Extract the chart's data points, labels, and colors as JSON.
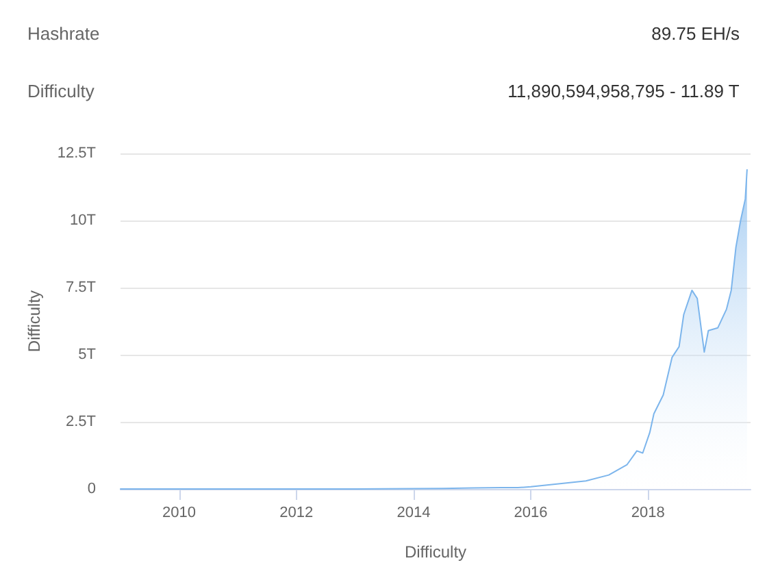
{
  "chart_data": {
    "type": "area",
    "annotations": [
      "Hashrate",
      "89.75 EH/s",
      "Difficulty",
      "11,890,594,958,795 - 11.89 T"
    ],
    "xlabel": "Difficulty",
    "ylabel": "Difficulty",
    "x": [
      2009.0,
      2010,
      2011,
      2012,
      2013,
      2014,
      2014.5,
      2015,
      2015.5,
      2015.78,
      2016,
      2016.5,
      2016.94,
      2017.33,
      2017.64,
      2017.81,
      2017.91,
      2018.03,
      2018.1,
      2018.26,
      2018.41,
      2018.53,
      2018.61,
      2018.75,
      2018.84,
      2018.96,
      2019.03,
      2019.19,
      2019.34,
      2019.42,
      2019.5,
      2019.58,
      2019.66,
      2019.69
    ],
    "series": [
      {
        "color": "#7cb5ec",
        "values": [
          0,
          0,
          0,
          0,
          0,
          0.01,
          0.02,
          0.04,
          0.05,
          0.05,
          0.08,
          0.2,
          0.3,
          0.52,
          0.9,
          1.42,
          1.34,
          2.1,
          2.8,
          3.5,
          4.9,
          5.3,
          6.5,
          7.4,
          7.1,
          5.1,
          5.9,
          6.0,
          6.7,
          7.4,
          9.0,
          10.0,
          10.8,
          11.89
        ]
      }
    ],
    "xlim": [
      2009.0,
      2019.75
    ],
    "xticks": [
      2010,
      2012,
      2014,
      2016,
      2018
    ],
    "ylim": [
      0,
      12.5
    ],
    "yticks": [
      {
        "value": 0,
        "label": "0"
      },
      {
        "value": 2.5,
        "label": "2.5T"
      },
      {
        "value": 5,
        "label": "5T"
      },
      {
        "value": 7.5,
        "label": "7.5T"
      },
      {
        "value": 10,
        "label": "10T"
      },
      {
        "value": 12.5,
        "label": "12.5T"
      }
    ],
    "grid": "y",
    "marker": "none",
    "line_style": "solid"
  }
}
